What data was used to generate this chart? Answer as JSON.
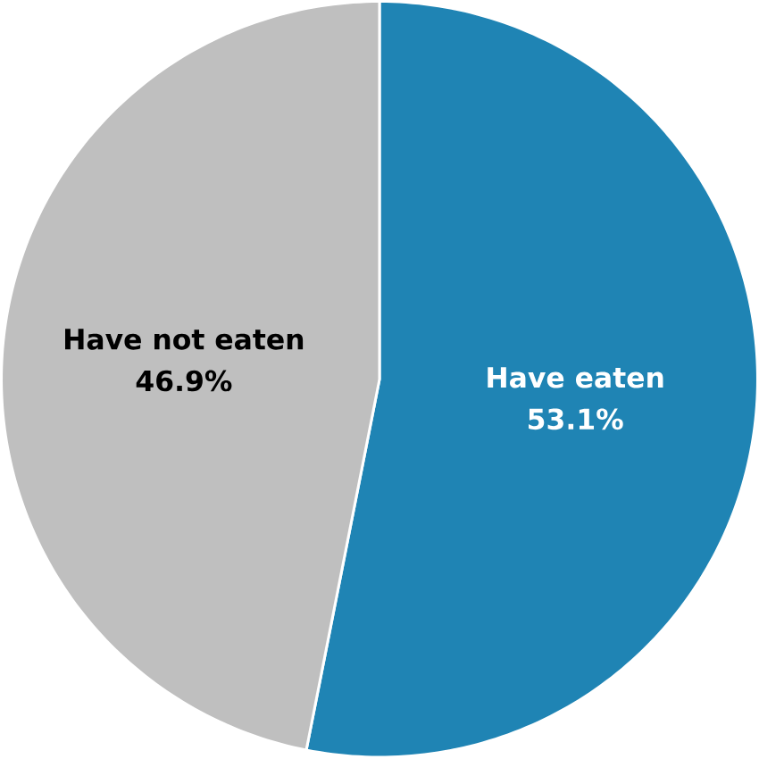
{
  "chart_data": {
    "type": "pie",
    "categories": [
      "Have eaten",
      "Have not eaten"
    ],
    "values": [
      53.1,
      46.9
    ],
    "value_labels": [
      "53.1%",
      "46.9%"
    ],
    "colors": [
      "#1f84b4",
      "#bfbfbf"
    ]
  }
}
